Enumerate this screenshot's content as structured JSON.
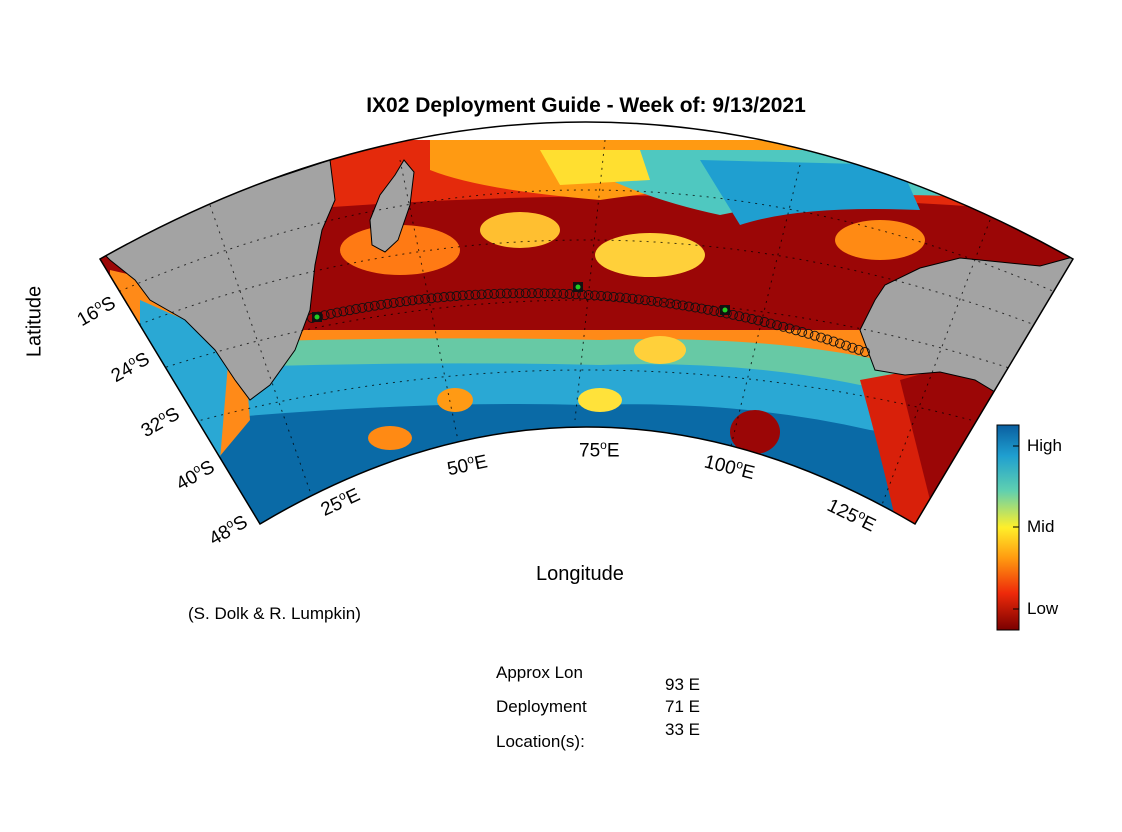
{
  "title": "IX02 Deployment Guide - Week of: 9/13/2021",
  "axes": {
    "xlabel": "Longitude",
    "ylabel": "Latitude"
  },
  "lat_ticks": [
    {
      "deg": "16",
      "hemi": "S"
    },
    {
      "deg": "24",
      "hemi": "S"
    },
    {
      "deg": "32",
      "hemi": "S"
    },
    {
      "deg": "40",
      "hemi": "S"
    },
    {
      "deg": "48",
      "hemi": "S"
    }
  ],
  "lon_ticks": [
    {
      "deg": "25",
      "hemi": "E"
    },
    {
      "deg": "50",
      "hemi": "E"
    },
    {
      "deg": "75",
      "hemi": "E"
    },
    {
      "deg": "100",
      "hemi": "E"
    },
    {
      "deg": "125",
      "hemi": "E"
    }
  ],
  "degree_symbol": "o",
  "colorbar": {
    "high": "High",
    "mid": "Mid",
    "low": "Low"
  },
  "credit": "(S. Dolk & R. Lumpkin)",
  "info": {
    "line1": "Approx Lon",
    "line2": "Deployment",
    "line3": "Location(s):",
    "values": [
      "93 E",
      "71 E",
      "33 E"
    ]
  },
  "colors": {
    "land": "#a3a3a3",
    "track": "#000000",
    "deploy_marker": "#22cc22"
  }
}
